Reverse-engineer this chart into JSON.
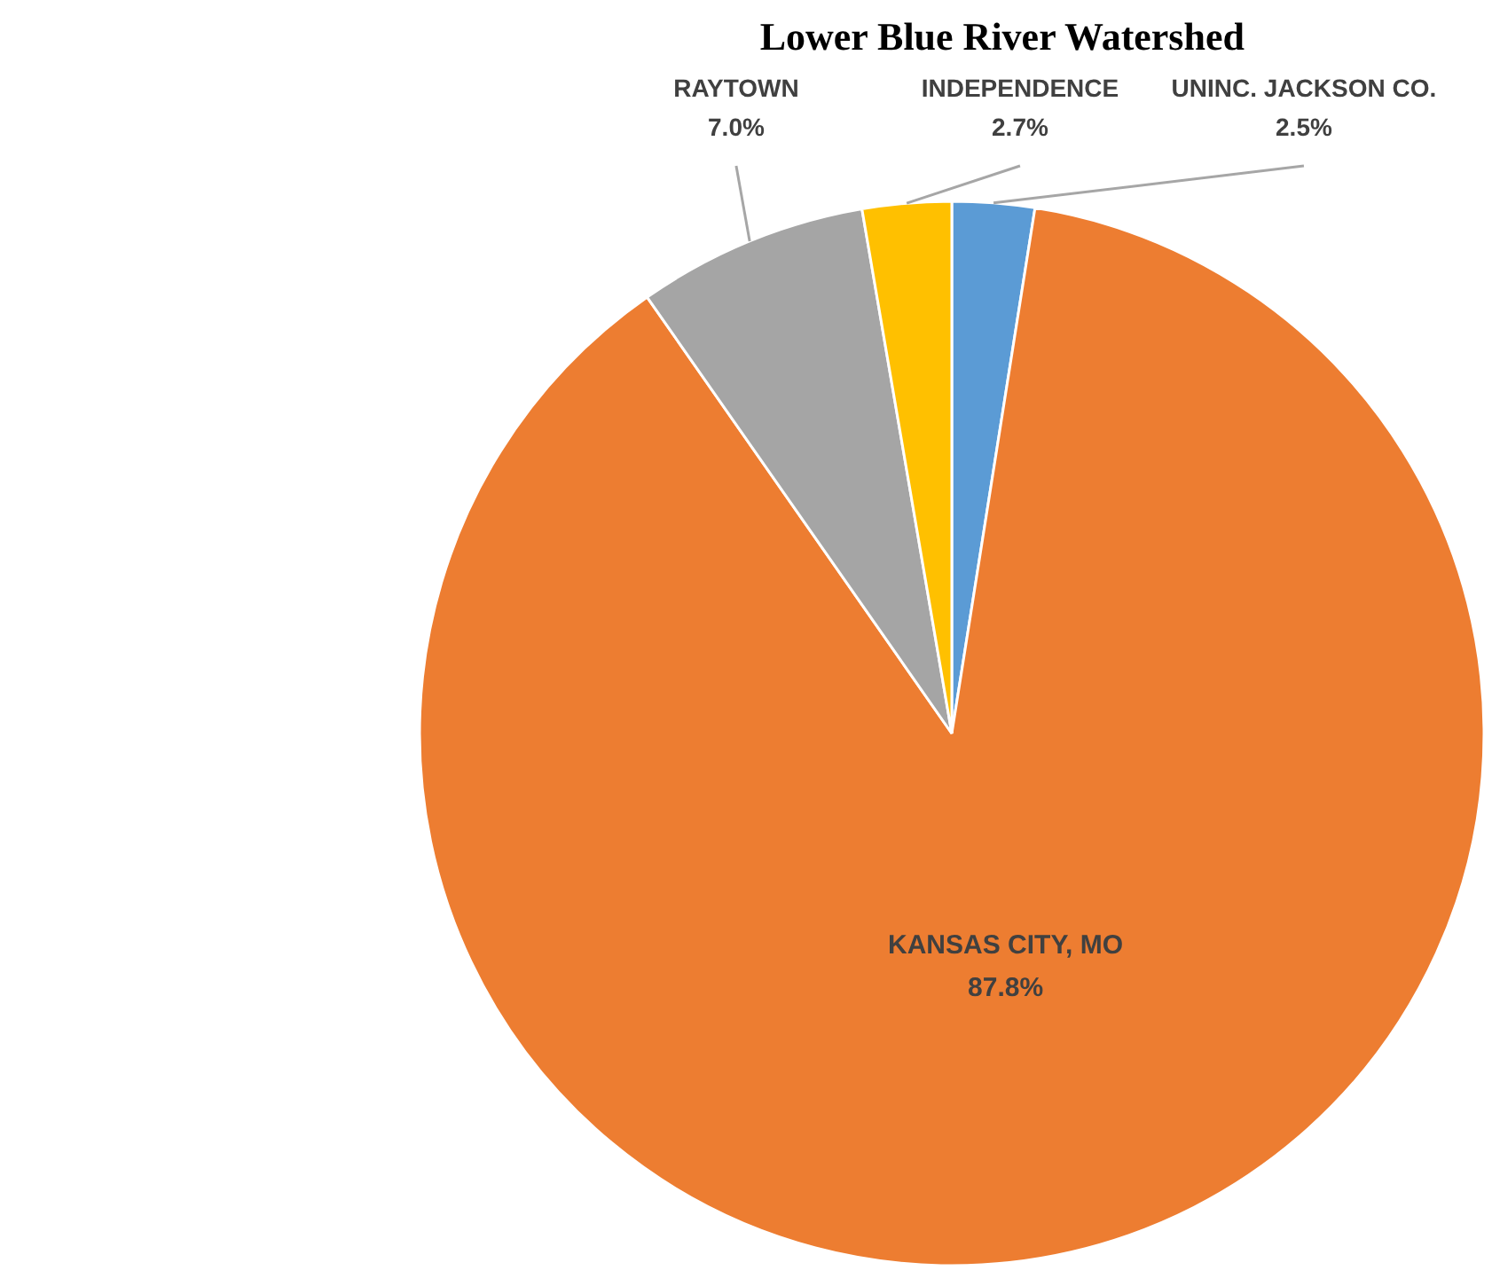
{
  "chart_data": {
    "type": "pie",
    "title": "Lower Blue River Watershed",
    "categories": [
      "UNINC. JACKSON CO.",
      "KANSAS CITY, MO",
      "RAYTOWN",
      "INDEPENDENCE"
    ],
    "values": [
      2.5,
      87.8,
      7.0,
      2.7
    ],
    "colors": [
      "#5b9bd5",
      "#ed7d31",
      "#a5a5a5",
      "#ffc000"
    ],
    "value_labels": [
      "2.5%",
      "87.8%",
      "7.0%",
      "2.7%"
    ]
  }
}
